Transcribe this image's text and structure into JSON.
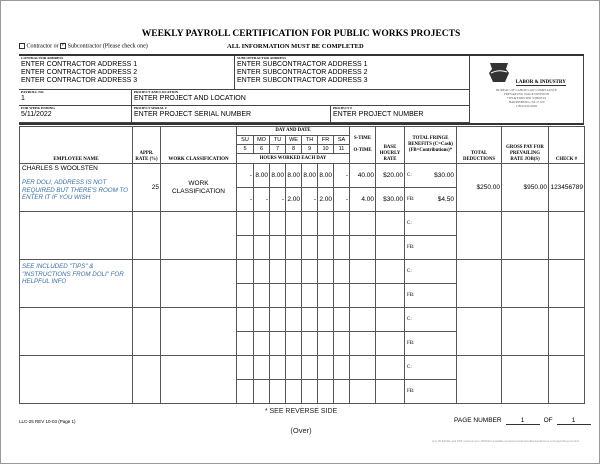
{
  "title": "WEEKLY PAYROLL CERTIFICATION FOR PUBLIC WORKS PROJECTS",
  "contractor_check": {
    "contractor_label": "Contractor or",
    "subcontractor_label": "Subcontractor (Please check one)",
    "contractor_checked": false,
    "subcontractor_checked": true
  },
  "all_info": "ALL INFORMATION MUST BE COMPLETED",
  "contractor": {
    "label": "CONTRACTOR ADDRESS",
    "lines": [
      "ENTER CONTRACTOR ADDRESS 1",
      "ENTER CONTRACTOR ADDRESS 2",
      "ENTER CONTRACTOR ADDRESS 3"
    ]
  },
  "subcontractor": {
    "label": "SUBCONTRACTOR ADDRESS",
    "lines": [
      "ENTER SUBCONTRACTOR ADDRESS 1",
      "ENTER SUBCONTRACTOR ADDRESS 2",
      "ENTER SUBCONTRACTOR ADDRESS 3"
    ]
  },
  "payroll_no": {
    "label": "PAYROLL NO.",
    "value": "1"
  },
  "project_location": {
    "label": "PROJECT AND LOCATION",
    "value": "ENTER PROJECT AND LOCATION"
  },
  "week_ending": {
    "label": "FOR WEEK ENDING",
    "value": "5/11/2022"
  },
  "project_serial": {
    "label": "PROJECT SERIAL #",
    "value": "ENTER PROJECT SERIAL NUMBER"
  },
  "project_no": {
    "label": "PROJECT #",
    "value": "ENTER PROJECT NUMBER"
  },
  "agency": {
    "name": "LABOR & INDUSTRY",
    "lines": [
      "BUREAU OF LABOR LAW COMPLIANCE",
      "PREVAILING WAGE DIVISION",
      "7TH & FORSTER STREETS",
      "HARRISBURG, PA 17120",
      "1-800-932-0665"
    ]
  },
  "headers": {
    "employee": "EMPLOYEE NAME",
    "appr": "APPR. RATE (%)",
    "work": "WORK CLASSIFICATION",
    "day_date": "DAY AND DATE",
    "days": [
      "SU",
      "MO",
      "TU",
      "WE",
      "TH",
      "FR",
      "SA"
    ],
    "dates": [
      "5",
      "6",
      "7",
      "8",
      "9",
      "10",
      "11"
    ],
    "hours": "HOURS WORKED EACH DAY",
    "stime": "S-TIME",
    "otime": "O-TIME",
    "base": "BASE HOURLY RATE",
    "fringe": "TOTAL FRINGE BENEFITS (C=Cash) (FB=Contributions)*",
    "deductions": "TOTAL DEDUCTIONS",
    "gross": "GROSS PAY FOR PREVAILING RATE JOB(S)",
    "check": "CHECK #"
  },
  "fringe_labels": {
    "cash": "C:",
    "fb": "FB:"
  },
  "rows": [
    {
      "name": "CHARLES S WOOLSTEN",
      "note": "PER DOLI, ADDRESS IS NOT REQUIRED BUT THERE'S ROOM TO ENTER IT IF YOU WISH",
      "appr": "25",
      "work": "WORK CLASSIFICATION",
      "st_hours": [
        "-",
        "8.00",
        "8.00",
        "8.00",
        "8.00",
        "8.00",
        "-"
      ],
      "ot_hours": [
        "-",
        "-",
        "-",
        "2.00",
        "-",
        "2.00",
        "-"
      ],
      "stime": "40.00",
      "otime": "4.00",
      "st_rate": "$20.00",
      "ot_rate": "$30.00",
      "cash": "$30.00",
      "fb": "$4.50",
      "deductions": "$250.00",
      "gross": "$950.00",
      "check": "123456789"
    },
    {},
    {
      "note": "SEE INCLUDED \"TIPS\" & \"INSTRUCTIONS FROM DOLI\" FOR HELPFUL INFO"
    },
    {},
    {}
  ],
  "footer": {
    "reverse": "* SEE REVERSE SIDE",
    "form": "LLC-25 REV 10-03 (Page 1)",
    "page_label": "PAGE NUMBER",
    "page": "1",
    "of_label": "OF",
    "of": "1",
    "over": "(Over)",
    "availability": "LLC-25 EXCEL and PDF versions (rev. 08/2012) available at www.ConstructionBusinessForms.com/payrollreports.html"
  }
}
